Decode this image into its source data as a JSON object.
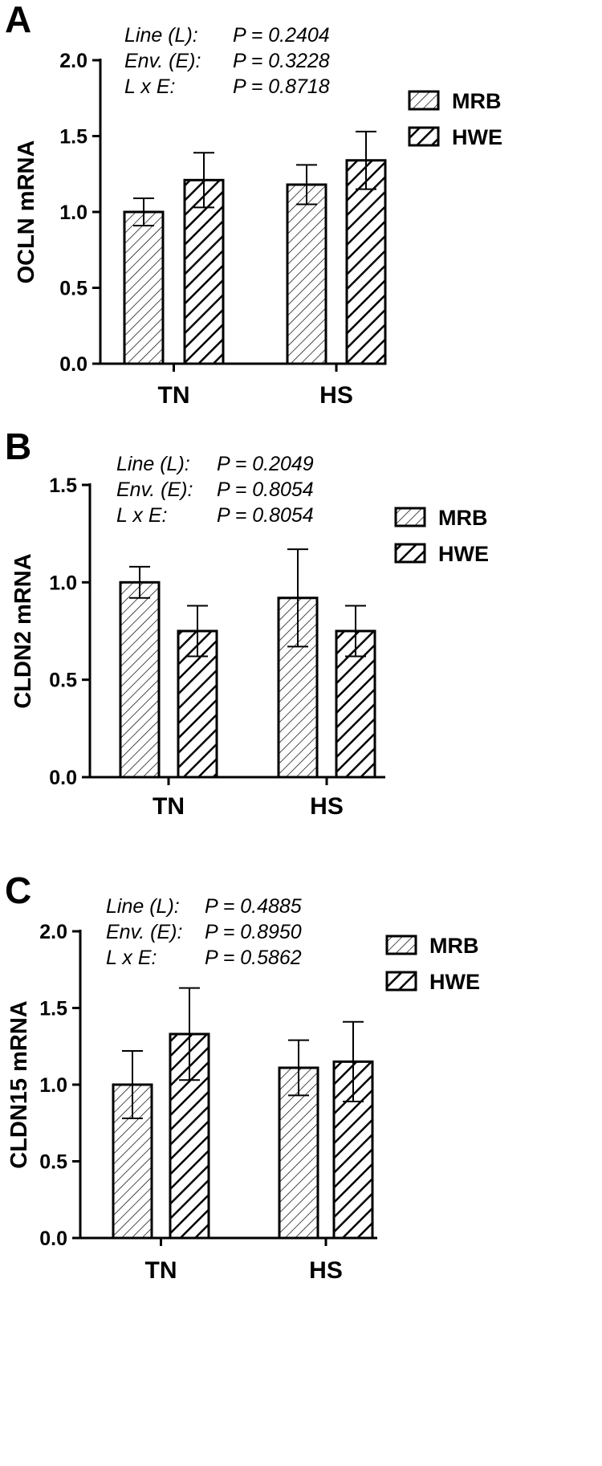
{
  "legend_items": [
    "MRB",
    "HWE"
  ],
  "colors": {
    "ink": "#000000",
    "background": "#ffffff"
  },
  "chart_data": [
    {
      "type": "bar",
      "panel": "A",
      "ylabel": "OCLN mRNA",
      "ylim": [
        0,
        2.0
      ],
      "yticks": [
        "0.0",
        "0.5",
        "1.0",
        "1.5",
        "2.0"
      ],
      "categories": [
        "TN",
        "HS"
      ],
      "series": [
        {
          "name": "MRB",
          "values": [
            1.0,
            1.18
          ],
          "errors": [
            0.09,
            0.13
          ]
        },
        {
          "name": "HWE",
          "values": [
            1.21,
            1.34
          ],
          "errors": [
            0.18,
            0.19
          ]
        }
      ],
      "stats": [
        {
          "label": "Line (L):",
          "value": "P = 0.2404"
        },
        {
          "label": "Env. (E):",
          "value": "P = 0.3228"
        },
        {
          "label": "L x E:",
          "value": "P = 0.8718"
        }
      ],
      "legend": "right"
    },
    {
      "type": "bar",
      "panel": "B",
      "ylabel": "CLDN2 mRNA",
      "ylim": [
        0,
        1.5
      ],
      "yticks": [
        "0.0",
        "0.5",
        "1.0",
        "1.5"
      ],
      "categories": [
        "TN",
        "HS"
      ],
      "series": [
        {
          "name": "MRB",
          "values": [
            1.0,
            0.92
          ],
          "errors": [
            0.08,
            0.25
          ]
        },
        {
          "name": "HWE",
          "values": [
            0.75,
            0.75
          ],
          "errors": [
            0.13,
            0.13
          ]
        }
      ],
      "stats": [
        {
          "label": "Line (L):",
          "value": "P = 0.2049"
        },
        {
          "label": "Env. (E):",
          "value": "P = 0.8054"
        },
        {
          "label": "L x E:",
          "value": "P = 0.8054"
        }
      ],
      "legend": "right"
    },
    {
      "type": "bar",
      "panel": "C",
      "ylabel": "CLDN15 mRNA",
      "ylim": [
        0,
        2.0
      ],
      "yticks": [
        "0.0",
        "0.5",
        "1.0",
        "1.5",
        "2.0"
      ],
      "categories": [
        "TN",
        "HS"
      ],
      "series": [
        {
          "name": "MRB",
          "values": [
            1.0,
            1.11
          ],
          "errors": [
            0.22,
            0.18
          ]
        },
        {
          "name": "HWE",
          "values": [
            1.33,
            1.15
          ],
          "errors": [
            0.3,
            0.26
          ]
        }
      ],
      "stats": [
        {
          "label": "Line (L):",
          "value": "P = 0.4885"
        },
        {
          "label": "Env. (E):",
          "value": "P = 0.8950"
        },
        {
          "label": "L x E:",
          "value": "P = 0.5862"
        }
      ],
      "legend": "right"
    }
  ]
}
